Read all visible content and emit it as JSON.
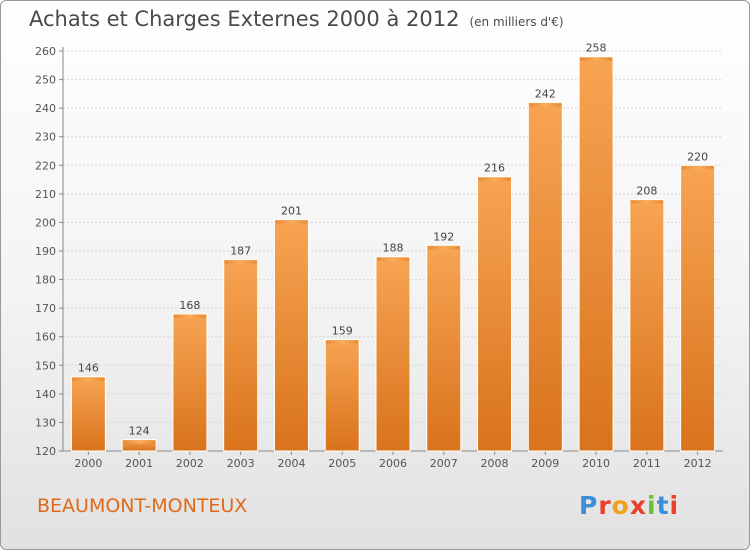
{
  "chart_data": {
    "type": "bar",
    "title": "Achats et Charges Externes 2000 à 2012",
    "unit_note": "(en milliers d'€)",
    "categories": [
      "2000",
      "2001",
      "2002",
      "2003",
      "2004",
      "2005",
      "2006",
      "2007",
      "2008",
      "2009",
      "2010",
      "2011",
      "2012"
    ],
    "values": [
      146,
      124,
      168,
      187,
      201,
      159,
      188,
      192,
      216,
      242,
      258,
      208,
      220
    ],
    "ylim": [
      120,
      260
    ],
    "yticks": [
      120,
      130,
      140,
      150,
      160,
      170,
      180,
      190,
      200,
      210,
      220,
      230,
      240,
      250,
      260
    ],
    "grid": true,
    "bar_color": "#f0902f"
  },
  "footer": {
    "city": "BEAUMONT-MONTEUX"
  },
  "logo": {
    "text": "Proxiti",
    "colors": [
      "#3a8fd8",
      "#e8402a",
      "#f2a21a",
      "#e8402a",
      "#6bbf3a",
      "#3a8fd8",
      "#e8402a"
    ]
  }
}
